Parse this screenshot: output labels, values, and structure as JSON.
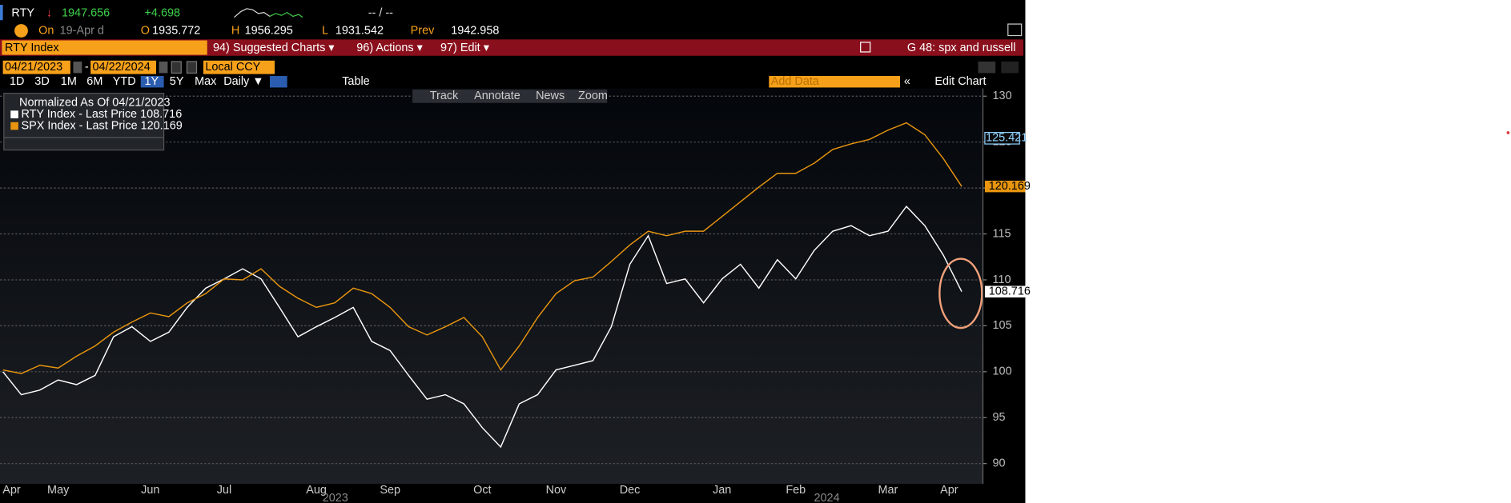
{
  "header": {
    "ticker": "RTY",
    "arrow": "↓",
    "last": "1947.656",
    "change": "+4.698",
    "bid_ask": "-- / --",
    "on": "On",
    "date": "19-Apr d",
    "open_label": "O",
    "open": "1935.772",
    "high_label": "H",
    "high": "1956.295",
    "low_label": "L",
    "low": "1931.542",
    "prev_label": "Prev",
    "prev": "1942.958"
  },
  "menu": {
    "security": "RTY Index",
    "items": [
      "94) Suggested Charts ▾",
      "96) Actions ▾",
      "97) Edit ▾"
    ],
    "chart_name": "G 48: spx and russell"
  },
  "controls": {
    "start_date": "04/21/2023",
    "end_date": "04/22/2024",
    "currency": "Local CCY",
    "periods": [
      "1D",
      "3D",
      "1M",
      "6M",
      "YTD",
      "1Y",
      "5Y",
      "Max"
    ],
    "active_period": "1Y",
    "frequency": "Daily ▼",
    "table": "Table",
    "add_data": "Add Data",
    "edit_chart": "Edit Chart"
  },
  "tools": [
    "Track",
    "Annotate",
    "News",
    "Zoom"
  ],
  "chart_data": {
    "type": "line",
    "legend_title": "Normalized As Of 04/21/2023",
    "categories": [
      "Apr",
      null,
      null,
      "May",
      null,
      null,
      null,
      null,
      "Jun",
      null,
      null,
      null,
      "Jul",
      null,
      null,
      null,
      null,
      "Aug",
      null,
      null,
      null,
      "Sep",
      null,
      null,
      null,
      null,
      "Oct",
      null,
      null,
      null,
      "Nov",
      null,
      null,
      null,
      "Dec",
      null,
      null,
      null,
      null,
      "Jan",
      null,
      null,
      null,
      "Feb",
      null,
      null,
      null,
      null,
      "Mar",
      null,
      null,
      null,
      "Apr"
    ],
    "years": [
      "2023",
      "2024"
    ],
    "series": [
      {
        "name": "RTY Index - Last Price 108.716",
        "color": "#ffffff",
        "values": [
          100,
          97.5,
          98,
          99.1,
          98.6,
          99.6,
          103.8,
          104.9,
          103.3,
          104.3,
          107,
          109.1,
          110.1,
          111.2,
          110.1,
          107,
          103.8,
          104.9,
          105.9,
          107,
          103.3,
          102.3,
          99.6,
          97,
          97.5,
          96.5,
          93.9,
          91.8,
          96.5,
          97.5,
          100.2,
          100.7,
          101.2,
          104.9,
          111.7,
          114.8,
          109.6,
          110.1,
          107.5,
          110.1,
          111.7,
          109.1,
          112.2,
          110.1,
          113.2,
          115.3,
          115.9,
          114.8,
          115.3,
          118,
          115.9,
          112.7,
          108.716
        ]
      },
      {
        "name": "SPX Index - Last Price 120.169",
        "color": "#e8950f",
        "values": [
          100.2,
          99.8,
          100.7,
          100.4,
          101.7,
          102.8,
          104.3,
          105.4,
          106.4,
          106,
          107.5,
          108.5,
          110.1,
          110,
          111.2,
          109.3,
          108,
          107,
          107.5,
          109.1,
          108.5,
          107,
          104.9,
          104,
          104.9,
          105.9,
          103.8,
          100.2,
          102.8,
          105.9,
          108.5,
          109.9,
          110.3,
          112,
          113.8,
          115.3,
          114.8,
          115.3,
          115.3,
          116.9,
          118.5,
          120.1,
          121.6,
          121.6,
          122.7,
          124.2,
          124.8,
          125.3,
          126.3,
          127.1,
          125.8,
          123.2,
          120.169
        ]
      }
    ],
    "marker_label": 125.421,
    "ylim": [
      87.8,
      130.7
    ],
    "yticks": [
      90,
      95,
      100,
      105,
      110,
      115,
      120,
      125,
      130
    ],
    "grid": true
  }
}
